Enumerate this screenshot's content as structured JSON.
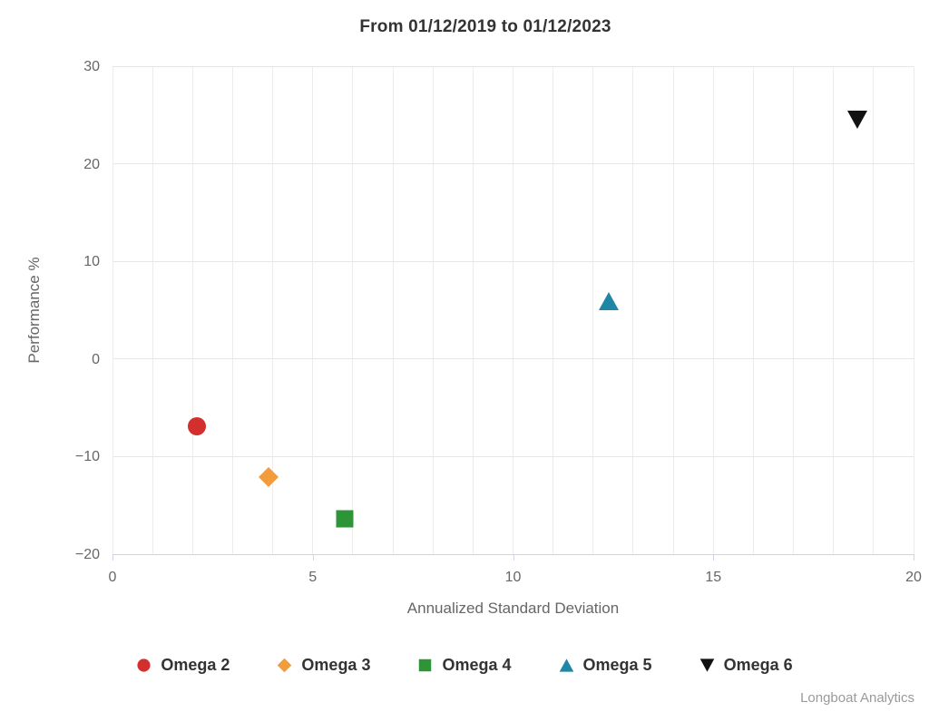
{
  "chart_data": {
    "type": "scatter",
    "title": "From 01/12/2019 to 01/12/2023",
    "xlabel": "Annualized Standard Deviation",
    "ylabel": "Performance %",
    "xlim": [
      0,
      20
    ],
    "ylim": [
      -20,
      30
    ],
    "x_ticks": [
      0,
      5,
      10,
      15,
      20
    ],
    "y_ticks": [
      -20,
      -10,
      0,
      10,
      20,
      30
    ],
    "x_minor_grid_step": 1,
    "grid": true,
    "legend_position": "bottom",
    "credit": "Longboat Analytics",
    "colors": {
      "axis_line": "#ccd6eb",
      "grid_major": "#e6e6e6",
      "grid_minor": "#ececec",
      "axis_text": "#666666",
      "title_text": "#333333",
      "credit_text": "#9a9a9a"
    },
    "series": [
      {
        "name": "Omega 2",
        "marker": "circle",
        "color": "#d32f2f",
        "x": 2.1,
        "y": -6.9
      },
      {
        "name": "Omega 3",
        "marker": "diamond",
        "color": "#f29c3c",
        "x": 3.9,
        "y": -12.1
      },
      {
        "name": "Omega 4",
        "marker": "square",
        "color": "#2e9437",
        "x": 5.8,
        "y": -16.4
      },
      {
        "name": "Omega 5",
        "marker": "triangle-up",
        "color": "#1f87a5",
        "x": 12.4,
        "y": 5.9
      },
      {
        "name": "Omega 6",
        "marker": "triangle-down",
        "color": "#111111",
        "x": 18.6,
        "y": 24.5
      }
    ]
  }
}
